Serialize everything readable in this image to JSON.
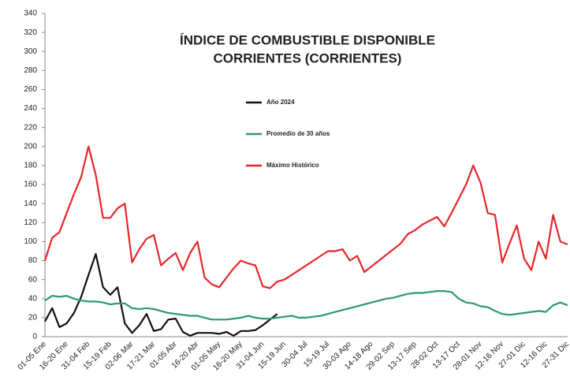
{
  "chart_data": {
    "type": "line",
    "title": [
      "ÍNDICE DE COMBUSTIBLE DISPONIBLE",
      "CORRIENTES (CORRIENTES)"
    ],
    "categories": [
      "01-05 Ene",
      null,
      null,
      "16-20 Ene",
      null,
      null,
      "31-04 Feb",
      null,
      null,
      "15-19 Feb",
      null,
      null,
      "02-06 Mar",
      null,
      null,
      "17-21 Mar",
      null,
      null,
      "01-05 Abr",
      null,
      null,
      "16-20 Abr",
      null,
      null,
      "01-05 May",
      null,
      null,
      "16-20 May",
      null,
      null,
      "31-04 Jun",
      null,
      null,
      "15-19 Jun",
      null,
      null,
      "30-04 Jul",
      null,
      null,
      "15-19 Jul",
      null,
      null,
      "30-03 Ago",
      null,
      null,
      "14-18 Ago",
      null,
      null,
      "29-02 Sep",
      null,
      null,
      "13-17 Sep",
      null,
      null,
      "28-02 Oct",
      null,
      null,
      "13-17 Oct",
      null,
      null,
      "28-01 Nov",
      null,
      null,
      "12-16 Nov",
      null,
      null,
      "27-01 Dic",
      null,
      null,
      "12-16 Dic",
      null,
      null,
      "27-31 Dic"
    ],
    "series": [
      {
        "name": "Año 2024",
        "color": "#111111",
        "values": [
          16,
          30,
          10,
          14,
          25,
          42,
          65,
          87,
          52,
          44,
          52,
          14,
          4,
          12,
          24,
          6,
          8,
          18,
          19,
          5,
          1,
          4,
          4,
          4,
          3,
          5,
          1,
          6,
          6,
          7,
          12,
          18,
          24,
          null,
          null,
          null,
          null,
          null,
          null,
          null,
          null,
          null,
          null,
          null,
          null,
          null,
          null,
          null,
          null,
          null,
          null,
          null,
          null,
          null,
          null,
          null,
          null,
          null,
          null,
          null,
          null,
          null,
          null,
          null,
          null,
          null,
          null,
          null,
          null,
          null,
          null,
          null,
          null
        ]
      },
      {
        "name": "Promedio de 30 años",
        "color": "#2e9a6e",
        "values": [
          38,
          43,
          42,
          43,
          40,
          38,
          37,
          37,
          36,
          34,
          35,
          35,
          30,
          29,
          30,
          29,
          27,
          25,
          24,
          23,
          22,
          22,
          20,
          18,
          18,
          18,
          19,
          20,
          22,
          20,
          19,
          19,
          20,
          21,
          22,
          20,
          20,
          21,
          22,
          24,
          26,
          28,
          30,
          32,
          34,
          36,
          38,
          40,
          41,
          43,
          45,
          46,
          46,
          47,
          48,
          48,
          47,
          40,
          36,
          35,
          32,
          31,
          27,
          24,
          23,
          24,
          25,
          26,
          27,
          26,
          33,
          36,
          33
        ]
      },
      {
        "name": "Máximo Histórico",
        "color": "#e8262a",
        "values": [
          80,
          104,
          110,
          130,
          150,
          168,
          200,
          170,
          125,
          125,
          135,
          140,
          78,
          92,
          103,
          107,
          75,
          82,
          88,
          70,
          88,
          100,
          62,
          55,
          52,
          62,
          72,
          80,
          77,
          75,
          53,
          51,
          58,
          60,
          65,
          70,
          75,
          80,
          85,
          90,
          90,
          92,
          80,
          85,
          68,
          74,
          80,
          86,
          92,
          98,
          108,
          112,
          118,
          122,
          126,
          116,
          130,
          145,
          160,
          180,
          162,
          130,
          128,
          78,
          98,
          117,
          82,
          70,
          100,
          82,
          128,
          100,
          97
        ]
      }
    ],
    "ylim": [
      0,
      340
    ],
    "yticks": [
      0,
      20,
      40,
      60,
      80,
      100,
      120,
      140,
      160,
      180,
      200,
      220,
      240,
      260,
      280,
      300,
      320,
      340
    ],
    "grid": false
  }
}
